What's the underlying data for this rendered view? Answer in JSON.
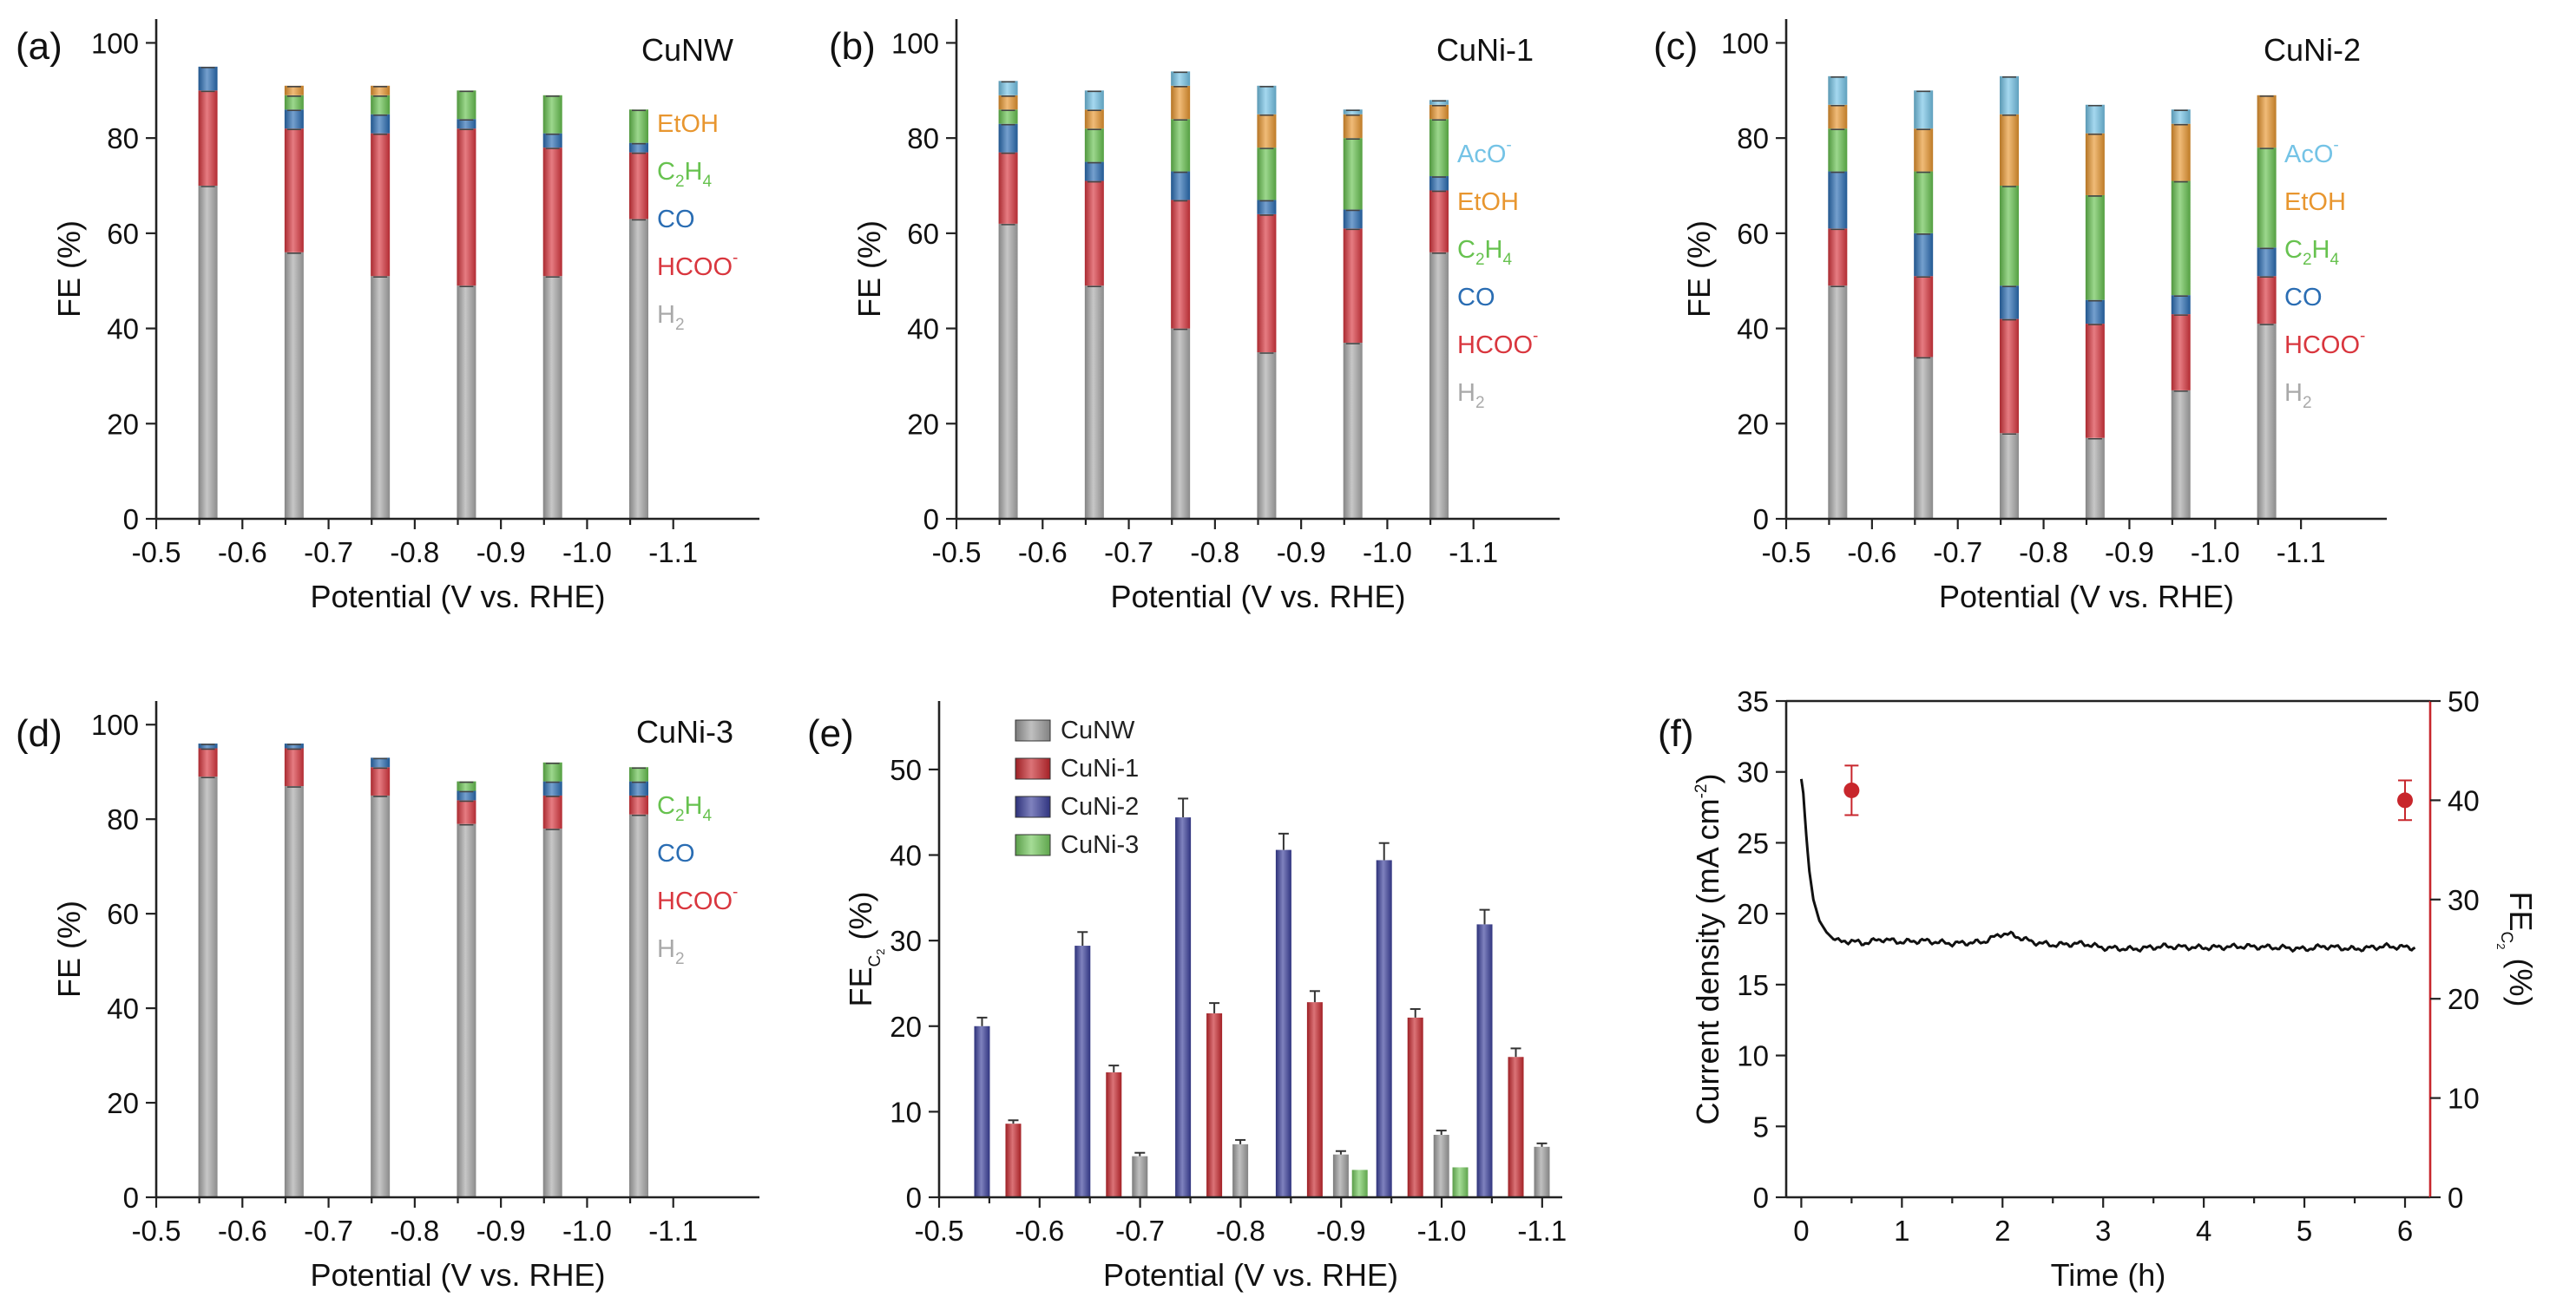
{
  "colors": {
    "H2": "#a9a9a9",
    "HCOO": "#d9363e",
    "CO": "#2a6db3",
    "C2H4": "#67c24f",
    "EtOH": "#e8962f",
    "AcO": "#74c3e6",
    "CuNW": "#9e9e9e",
    "CuNi-1": "#c8282e",
    "CuNi-2": "#3a3f9b",
    "CuNi-3": "#74c95e",
    "series_black": "#111111",
    "series_red": "#c8262c"
  },
  "chart_data": [
    {
      "id": "a",
      "panel_label": "(a)",
      "type": "bar",
      "stacked": true,
      "title": "CuNW",
      "xlabel": "Potential (V vs. RHE)",
      "ylabel": "FE (%)",
      "xlim": [
        -0.5,
        -1.2
      ],
      "ylim": [
        0,
        105
      ],
      "x_ticks": [
        "-0.5",
        "-0.6",
        "-0.7",
        "-0.8",
        "-0.9",
        "-1.0",
        "-1.1"
      ],
      "y_ticks": [
        "0",
        "20",
        "40",
        "60",
        "80",
        "100"
      ],
      "x": [
        -0.56,
        -0.66,
        -0.76,
        -0.86,
        -0.96,
        -1.06
      ],
      "series": [
        {
          "name": "H2",
          "values": [
            70,
            56,
            51,
            49,
            51,
            63
          ]
        },
        {
          "name": "HCOO",
          "values": [
            20,
            26,
            30,
            33,
            27,
            14
          ]
        },
        {
          "name": "CO",
          "values": [
            5,
            4,
            4,
            2,
            3,
            2
          ]
        },
        {
          "name": "C2H4",
          "values": [
            0,
            3,
            4,
            6,
            8,
            7
          ]
        },
        {
          "name": "EtOH",
          "values": [
            0,
            2,
            2,
            0,
            0,
            0
          ]
        }
      ],
      "legend": [
        {
          "text": "EtOH",
          "key": "EtOH"
        },
        {
          "text": "C",
          "sub": "2",
          "text2": "H",
          "sub2": "4",
          "key": "C2H4"
        },
        {
          "text": "CO",
          "key": "CO"
        },
        {
          "text": "HCOO",
          "sup": "-",
          "key": "HCOO"
        },
        {
          "text": "H",
          "sub": "2",
          "key": "H2"
        }
      ]
    },
    {
      "id": "b",
      "panel_label": "(b)",
      "type": "bar",
      "stacked": true,
      "title": "CuNi-1",
      "xlabel": "Potential (V vs. RHE)",
      "ylabel": "FE (%)",
      "xlim": [
        -0.5,
        -1.2
      ],
      "ylim": [
        0,
        105
      ],
      "x_ticks": [
        "-0.5",
        "-0.6",
        "-0.7",
        "-0.8",
        "-0.9",
        "-1.0",
        "-1.1"
      ],
      "y_ticks": [
        "0",
        "20",
        "40",
        "60",
        "80",
        "100"
      ],
      "x": [
        -0.56,
        -0.66,
        -0.76,
        -0.86,
        -0.96,
        -1.06
      ],
      "series": [
        {
          "name": "H2",
          "values": [
            62,
            49,
            40,
            35,
            37,
            56
          ]
        },
        {
          "name": "HCOO",
          "values": [
            15,
            22,
            27,
            29,
            24,
            13
          ]
        },
        {
          "name": "CO",
          "values": [
            6,
            4,
            6,
            3,
            4,
            3
          ]
        },
        {
          "name": "C2H4",
          "values": [
            3,
            7,
            11,
            11,
            15,
            12
          ]
        },
        {
          "name": "EtOH",
          "values": [
            3,
            4,
            7,
            7,
            5,
            3
          ]
        },
        {
          "name": "AcO",
          "values": [
            3,
            4,
            3,
            6,
            1,
            1
          ]
        }
      ],
      "legend": [
        {
          "text": "AcO",
          "sup": "-",
          "key": "AcO"
        },
        {
          "text": "EtOH",
          "key": "EtOH"
        },
        {
          "text": "C",
          "sub": "2",
          "text2": "H",
          "sub2": "4",
          "key": "C2H4"
        },
        {
          "text": "CO",
          "key": "CO"
        },
        {
          "text": "HCOO",
          "sup": "-",
          "key": "HCOO"
        },
        {
          "text": "H",
          "sub": "2",
          "key": "H2"
        }
      ]
    },
    {
      "id": "c",
      "panel_label": "(c)",
      "type": "bar",
      "stacked": true,
      "title": "CuNi-2",
      "xlabel": "Potential (V vs. RHE)",
      "ylabel": "FE (%)",
      "xlim": [
        -0.5,
        -1.2
      ],
      "ylim": [
        0,
        105
      ],
      "x_ticks": [
        "-0.5",
        "-0.6",
        "-0.7",
        "-0.8",
        "-0.9",
        "-1.0",
        "-1.1"
      ],
      "y_ticks": [
        "0",
        "20",
        "40",
        "60",
        "80",
        "100"
      ],
      "x": [
        -0.56,
        -0.66,
        -0.76,
        -0.86,
        -0.96,
        -1.06
      ],
      "series": [
        {
          "name": "H2",
          "values": [
            49,
            34,
            18,
            17,
            27,
            41
          ]
        },
        {
          "name": "HCOO",
          "values": [
            12,
            17,
            24,
            24,
            16,
            10
          ]
        },
        {
          "name": "CO",
          "values": [
            12,
            9,
            7,
            5,
            4,
            6
          ]
        },
        {
          "name": "C2H4",
          "values": [
            9,
            13,
            21,
            22,
            24,
            21
          ]
        },
        {
          "name": "EtOH",
          "values": [
            5,
            9,
            15,
            13,
            12,
            11
          ]
        },
        {
          "name": "AcO",
          "values": [
            6,
            8,
            8,
            6,
            3,
            0
          ]
        }
      ],
      "legend": [
        {
          "text": "AcO",
          "sup": "-",
          "key": "AcO"
        },
        {
          "text": "EtOH",
          "key": "EtOH"
        },
        {
          "text": "C",
          "sub": "2",
          "text2": "H",
          "sub2": "4",
          "key": "C2H4"
        },
        {
          "text": "CO",
          "key": "CO"
        },
        {
          "text": "HCOO",
          "sup": "-",
          "key": "HCOO"
        },
        {
          "text": "H",
          "sub": "2",
          "key": "H2"
        }
      ]
    },
    {
      "id": "d",
      "panel_label": "(d)",
      "type": "bar",
      "stacked": true,
      "title": "CuNi-3",
      "xlabel": "Potential (V vs. RHE)",
      "ylabel": "FE (%)",
      "xlim": [
        -0.5,
        -1.2
      ],
      "ylim": [
        0,
        105
      ],
      "x_ticks": [
        "-0.5",
        "-0.6",
        "-0.7",
        "-0.8",
        "-0.9",
        "-1.0",
        "-1.1"
      ],
      "y_ticks": [
        "0",
        "20",
        "40",
        "60",
        "80",
        "100"
      ],
      "x": [
        -0.56,
        -0.66,
        -0.76,
        -0.86,
        -0.96,
        -1.06
      ],
      "series": [
        {
          "name": "H2",
          "values": [
            89,
            87,
            85,
            79,
            78,
            81
          ]
        },
        {
          "name": "HCOO",
          "values": [
            6,
            8,
            6,
            5,
            7,
            4
          ]
        },
        {
          "name": "CO",
          "values": [
            1,
            1,
            2,
            2,
            3,
            3
          ]
        },
        {
          "name": "C2H4",
          "values": [
            0,
            0,
            0,
            2,
            4,
            3
          ]
        }
      ],
      "legend": [
        {
          "text": "C",
          "sub": "2",
          "text2": "H",
          "sub2": "4",
          "key": "C2H4"
        },
        {
          "text": "CO",
          "key": "CO"
        },
        {
          "text": "HCOO",
          "sup": "-",
          "key": "HCOO"
        },
        {
          "text": "H",
          "sub": "2",
          "key": "H2"
        }
      ]
    },
    {
      "id": "e",
      "panel_label": "(e)",
      "type": "bar",
      "stacked": false,
      "xlabel": "Potential (V vs. RHE)",
      "ylabel_main": "FE",
      "ylabel_sub": "C2",
      "ylabel_unit": " (%)",
      "xlim": [
        -0.5,
        -1.12
      ],
      "ylim": [
        0,
        58
      ],
      "x_ticks": [
        "-0.5",
        "-0.6",
        "-0.7",
        "-0.8",
        "-0.9",
        "-1.0",
        "-1.1"
      ],
      "y_ticks": [
        "0",
        "10",
        "20",
        "30",
        "40",
        "50"
      ],
      "x": [
        -0.56,
        -0.66,
        -0.76,
        -0.86,
        -0.96,
        -1.06
      ],
      "series": [
        {
          "name": "CuNW",
          "values": [
            0,
            4.8,
            6.2,
            5.0,
            7.3,
            5.9
          ],
          "errors": [
            0,
            0.4,
            0.5,
            0.4,
            0.5,
            0.4
          ]
        },
        {
          "name": "CuNi-1",
          "values": [
            8.6,
            14.6,
            21.5,
            22.8,
            21.0,
            16.4
          ],
          "errors": [
            0.4,
            0.8,
            1.2,
            1.3,
            1.0,
            1.0
          ]
        },
        {
          "name": "CuNi-2",
          "values": [
            20.0,
            29.4,
            44.4,
            40.6,
            39.4,
            31.9
          ],
          "errors": [
            1.0,
            1.6,
            2.2,
            1.9,
            2.0,
            1.7
          ]
        },
        {
          "name": "CuNi-3",
          "values": [
            0,
            0,
            0,
            0,
            3.2,
            3.5
          ],
          "errors": [
            0,
            0,
            0,
            0,
            0,
            0
          ]
        }
      ],
      "legend": [
        "CuNW",
        "CuNi-1",
        "CuNi-2",
        "CuNi-3"
      ]
    },
    {
      "id": "f",
      "panel_label": "(f)",
      "type": "line",
      "xlabel": "Time (h)",
      "ylabel_left": "Current density (mA cm",
      "ylabel_left_sup": "-2",
      "ylabel_left_end": ")",
      "ylabel_right_main": "FE",
      "ylabel_right_sub": "C2",
      "ylabel_right_unit": " (%)",
      "xlim": [
        -0.15,
        6.25
      ],
      "ylim_left": [
        0,
        35
      ],
      "ylim_right": [
        0,
        50
      ],
      "x_ticks": [
        "0",
        "1",
        "2",
        "3",
        "4",
        "5",
        "6"
      ],
      "y_ticks_left": [
        "0",
        "5",
        "10",
        "15",
        "20",
        "25",
        "30",
        "35"
      ],
      "y_ticks_right": [
        "0",
        "10",
        "20",
        "30",
        "40",
        "50"
      ],
      "series": [
        {
          "name": "Current density",
          "axis": "left",
          "x": [
            0.0,
            0.02,
            0.05,
            0.08,
            0.12,
            0.18,
            0.25,
            0.32,
            0.4,
            0.5,
            0.6,
            0.8,
            1.0,
            1.2,
            1.5,
            1.8,
            2.0,
            2.1,
            2.3,
            2.5,
            2.8,
            3.0,
            3.3,
            3.6,
            4.0,
            4.4,
            4.8,
            5.0,
            5.2,
            5.5,
            5.8,
            6.1
          ],
          "values": [
            29.5,
            28.5,
            25.5,
            23.0,
            21.0,
            19.5,
            18.7,
            18.2,
            18.0,
            18.1,
            17.9,
            18.2,
            18.0,
            18.1,
            17.9,
            18.0,
            18.6,
            18.5,
            18.0,
            17.8,
            17.9,
            17.6,
            17.5,
            17.7,
            17.6,
            17.7,
            17.6,
            17.5,
            17.7,
            17.5,
            17.7,
            17.6
          ]
        },
        {
          "name": "FE C2",
          "axis": "right",
          "x": [
            0.5,
            6.0
          ],
          "values": [
            41,
            40
          ],
          "errors": [
            2.5,
            2.0
          ]
        }
      ]
    }
  ]
}
